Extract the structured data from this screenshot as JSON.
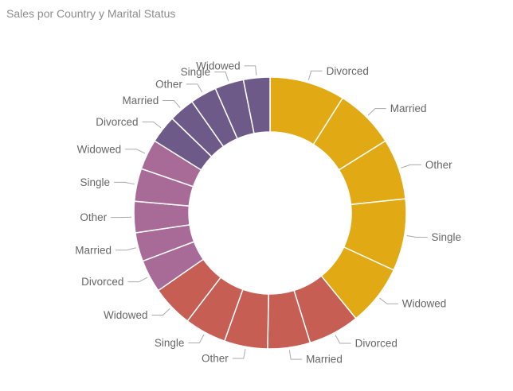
{
  "title": "Sales por Country y Marital Status",
  "chart_data": {
    "type": "donut",
    "title": "Sales por Country y Marital Status",
    "legend": "none",
    "colors": {
      "group_1": "#E1A913",
      "group_2": "#C65E54",
      "group_3": "#A86A97",
      "group_4": "#6E5A88"
    },
    "slices": [
      {
        "label": "Divorced",
        "group": 1,
        "value": 9.4
      },
      {
        "label": "Married",
        "group": 1,
        "value": 7.5
      },
      {
        "label": "Other",
        "group": 1,
        "value": 7.6
      },
      {
        "label": "Single",
        "group": 1,
        "value": 9.0
      },
      {
        "label": "Widowed",
        "group": 1,
        "value": 7.6
      },
      {
        "label": "Divorced",
        "group": 2,
        "value": 6.4
      },
      {
        "label": "Married",
        "group": 2,
        "value": 5.3
      },
      {
        "label": "Other",
        "group": 2,
        "value": 5.4
      },
      {
        "label": "Single",
        "group": 2,
        "value": 5.2
      },
      {
        "label": "Widowed",
        "group": 2,
        "value": 5.2
      },
      {
        "label": "Divorced",
        "group": 3,
        "value": 4.1
      },
      {
        "label": "Married",
        "group": 3,
        "value": 3.6
      },
      {
        "label": "Other",
        "group": 3,
        "value": 3.9
      },
      {
        "label": "Single",
        "group": 3,
        "value": 4.1
      },
      {
        "label": "Widowed",
        "group": 3,
        "value": 3.8
      },
      {
        "label": "Divorced",
        "group": 4,
        "value": 3.5
      },
      {
        "label": "Married",
        "group": 4,
        "value": 3.2
      },
      {
        "label": "Other",
        "group": 4,
        "value": 3.3
      },
      {
        "label": "Single",
        "group": 4,
        "value": 3.6
      },
      {
        "label": "Widowed",
        "group": 4,
        "value": 3.3
      }
    ]
  }
}
